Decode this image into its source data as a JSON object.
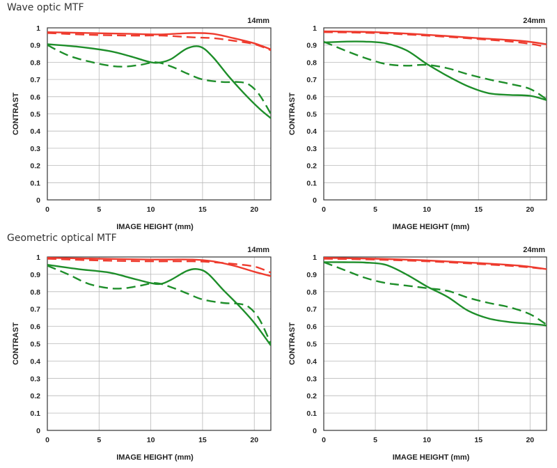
{
  "sections": [
    {
      "title": "Wave optic MTF"
    },
    {
      "title": "Geometric optical MTF"
    }
  ],
  "colors": {
    "red": "#ee3b2e",
    "green": "#1e8e2a",
    "grid": "#b8b8b8",
    "frame": "#333333"
  },
  "chart_data": [
    {
      "type": "line",
      "section": 0,
      "label": "14mm",
      "xlabel": "IMAGE HEIGHT (mm)",
      "ylabel": "CONTRAST",
      "xlim": [
        0,
        21.6
      ],
      "ylim": [
        0,
        1
      ],
      "xticks": [
        0,
        5,
        10,
        15,
        20
      ],
      "yticks": [
        0,
        0.1,
        0.2,
        0.3,
        0.4,
        0.5,
        0.6,
        0.7,
        0.8,
        0.9,
        1
      ],
      "grid": true,
      "series": [
        {
          "color": "red",
          "dash": false,
          "points": [
            [
              0,
              0.975
            ],
            [
              4,
              0.97
            ],
            [
              8,
              0.965
            ],
            [
              11,
              0.962
            ],
            [
              14,
              0.97
            ],
            [
              16,
              0.965
            ],
            [
              18,
              0.94
            ],
            [
              20,
              0.91
            ],
            [
              21.6,
              0.875
            ]
          ]
        },
        {
          "color": "red",
          "dash": true,
          "points": [
            [
              0,
              0.97
            ],
            [
              4,
              0.96
            ],
            [
              8,
              0.955
            ],
            [
              11,
              0.955
            ],
            [
              14,
              0.945
            ],
            [
              16,
              0.94
            ],
            [
              18,
              0.925
            ],
            [
              20,
              0.905
            ],
            [
              21.6,
              0.87
            ]
          ]
        },
        {
          "color": "green",
          "dash": false,
          "points": [
            [
              0,
              0.905
            ],
            [
              3,
              0.89
            ],
            [
              6,
              0.865
            ],
            [
              8,
              0.835
            ],
            [
              10,
              0.8
            ],
            [
              11,
              0.8
            ],
            [
              12,
              0.82
            ],
            [
              13.5,
              0.88
            ],
            [
              14.8,
              0.89
            ],
            [
              16,
              0.83
            ],
            [
              17.5,
              0.72
            ],
            [
              19,
              0.62
            ],
            [
              20.5,
              0.53
            ],
            [
              21.6,
              0.475
            ]
          ]
        },
        {
          "color": "green",
          "dash": true,
          "points": [
            [
              0,
              0.9
            ],
            [
              2,
              0.84
            ],
            [
              4,
              0.805
            ],
            [
              6,
              0.78
            ],
            [
              7.5,
              0.775
            ],
            [
              9,
              0.785
            ],
            [
              10.5,
              0.8
            ],
            [
              12,
              0.775
            ],
            [
              13.5,
              0.735
            ],
            [
              15,
              0.7
            ],
            [
              17,
              0.685
            ],
            [
              18.5,
              0.685
            ],
            [
              19.5,
              0.67
            ],
            [
              20.5,
              0.61
            ],
            [
              21.6,
              0.5
            ]
          ]
        }
      ]
    },
    {
      "type": "line",
      "section": 0,
      "label": "24mm",
      "xlabel": "IMAGE HEIGHT (mm)",
      "ylabel": "CONTRAST",
      "xlim": [
        0,
        21.6
      ],
      "ylim": [
        0,
        1
      ],
      "xticks": [
        0,
        5,
        10,
        15,
        20
      ],
      "yticks": [
        0,
        0.1,
        0.2,
        0.3,
        0.4,
        0.5,
        0.6,
        0.7,
        0.8,
        0.9,
        1
      ],
      "grid": true,
      "series": [
        {
          "color": "red",
          "dash": false,
          "points": [
            [
              0,
              0.98
            ],
            [
              5,
              0.975
            ],
            [
              10,
              0.96
            ],
            [
              15,
              0.94
            ],
            [
              19,
              0.925
            ],
            [
              21.6,
              0.905
            ]
          ]
        },
        {
          "color": "red",
          "dash": true,
          "points": [
            [
              0,
              0.975
            ],
            [
              5,
              0.97
            ],
            [
              10,
              0.955
            ],
            [
              15,
              0.935
            ],
            [
              19,
              0.915
            ],
            [
              21.6,
              0.89
            ]
          ]
        },
        {
          "color": "green",
          "dash": false,
          "points": [
            [
              0,
              0.915
            ],
            [
              2,
              0.92
            ],
            [
              4,
              0.92
            ],
            [
              6,
              0.91
            ],
            [
              8,
              0.87
            ],
            [
              10,
              0.79
            ],
            [
              12,
              0.72
            ],
            [
              14,
              0.66
            ],
            [
              16,
              0.62
            ],
            [
              18,
              0.61
            ],
            [
              20,
              0.605
            ],
            [
              21.6,
              0.58
            ]
          ]
        },
        {
          "color": "green",
          "dash": true,
          "points": [
            [
              0,
              0.92
            ],
            [
              2,
              0.87
            ],
            [
              4,
              0.825
            ],
            [
              6,
              0.79
            ],
            [
              8,
              0.78
            ],
            [
              10,
              0.785
            ],
            [
              12,
              0.765
            ],
            [
              14,
              0.73
            ],
            [
              16,
              0.7
            ],
            [
              18,
              0.675
            ],
            [
              20,
              0.645
            ],
            [
              21.6,
              0.585
            ]
          ]
        }
      ]
    },
    {
      "type": "line",
      "section": 1,
      "label": "14mm",
      "xlabel": "IMAGE HEIGHT (mm)",
      "ylabel": "CONTRAST",
      "xlim": [
        0,
        21.6
      ],
      "ylim": [
        0,
        1
      ],
      "xticks": [
        0,
        5,
        10,
        15,
        20
      ],
      "yticks": [
        0,
        0.1,
        0.2,
        0.3,
        0.4,
        0.5,
        0.6,
        0.7,
        0.8,
        0.9,
        1
      ],
      "grid": true,
      "series": [
        {
          "color": "red",
          "dash": false,
          "points": [
            [
              0,
              0.995
            ],
            [
              5,
              0.99
            ],
            [
              10,
              0.985
            ],
            [
              14,
              0.985
            ],
            [
              16,
              0.975
            ],
            [
              18,
              0.95
            ],
            [
              20,
              0.915
            ],
            [
              21.6,
              0.89
            ]
          ]
        },
        {
          "color": "red",
          "dash": true,
          "points": [
            [
              0,
              0.99
            ],
            [
              5,
              0.98
            ],
            [
              10,
              0.975
            ],
            [
              14,
              0.975
            ],
            [
              16,
              0.97
            ],
            [
              18,
              0.96
            ],
            [
              20,
              0.945
            ],
            [
              21.6,
              0.91
            ]
          ]
        },
        {
          "color": "green",
          "dash": false,
          "points": [
            [
              0,
              0.955
            ],
            [
              3,
              0.93
            ],
            [
              6,
              0.91
            ],
            [
              8,
              0.88
            ],
            [
              10,
              0.85
            ],
            [
              11,
              0.845
            ],
            [
              12,
              0.87
            ],
            [
              13.5,
              0.92
            ],
            [
              14.5,
              0.93
            ],
            [
              15.5,
              0.905
            ],
            [
              17,
              0.81
            ],
            [
              18.5,
              0.72
            ],
            [
              20,
              0.62
            ],
            [
              21.6,
              0.49
            ]
          ]
        },
        {
          "color": "green",
          "dash": true,
          "points": [
            [
              0,
              0.95
            ],
            [
              2,
              0.9
            ],
            [
              4,
              0.845
            ],
            [
              6,
              0.82
            ],
            [
              7.5,
              0.82
            ],
            [
              9,
              0.835
            ],
            [
              10.5,
              0.85
            ],
            [
              12,
              0.825
            ],
            [
              13.5,
              0.79
            ],
            [
              15,
              0.755
            ],
            [
              17,
              0.735
            ],
            [
              18.5,
              0.73
            ],
            [
              19.5,
              0.71
            ],
            [
              20.5,
              0.64
            ],
            [
              21.6,
              0.5
            ]
          ]
        }
      ]
    },
    {
      "type": "line",
      "section": 1,
      "label": "24mm",
      "xlabel": "IMAGE HEIGHT (mm)",
      "ylabel": "CONTRAST",
      "xlim": [
        0,
        21.6
      ],
      "ylim": [
        0,
        1
      ],
      "xticks": [
        0,
        5,
        10,
        15,
        20
      ],
      "yticks": [
        0,
        0.1,
        0.2,
        0.3,
        0.4,
        0.5,
        0.6,
        0.7,
        0.8,
        0.9,
        1
      ],
      "grid": true,
      "series": [
        {
          "color": "red",
          "dash": false,
          "points": [
            [
              0,
              0.995
            ],
            [
              5,
              0.99
            ],
            [
              10,
              0.98
            ],
            [
              15,
              0.965
            ],
            [
              19,
              0.95
            ],
            [
              21.6,
              0.93
            ]
          ]
        },
        {
          "color": "red",
          "dash": true,
          "points": [
            [
              0,
              0.99
            ],
            [
              5,
              0.985
            ],
            [
              10,
              0.975
            ],
            [
              15,
              0.96
            ],
            [
              19,
              0.945
            ],
            [
              21.6,
              0.93
            ]
          ]
        },
        {
          "color": "green",
          "dash": false,
          "points": [
            [
              0,
              0.97
            ],
            [
              2,
              0.97
            ],
            [
              4,
              0.968
            ],
            [
              6,
              0.955
            ],
            [
              8,
              0.9
            ],
            [
              10,
              0.83
            ],
            [
              12,
              0.77
            ],
            [
              14,
              0.69
            ],
            [
              16,
              0.645
            ],
            [
              18,
              0.625
            ],
            [
              20,
              0.615
            ],
            [
              21.6,
              0.605
            ]
          ]
        },
        {
          "color": "green",
          "dash": true,
          "points": [
            [
              0,
              0.97
            ],
            [
              2,
              0.925
            ],
            [
              4,
              0.88
            ],
            [
              6,
              0.85
            ],
            [
              8,
              0.835
            ],
            [
              10,
              0.82
            ],
            [
              12,
              0.805
            ],
            [
              14,
              0.765
            ],
            [
              16,
              0.735
            ],
            [
              18,
              0.71
            ],
            [
              20,
              0.67
            ],
            [
              21.6,
              0.61
            ]
          ]
        }
      ]
    }
  ]
}
